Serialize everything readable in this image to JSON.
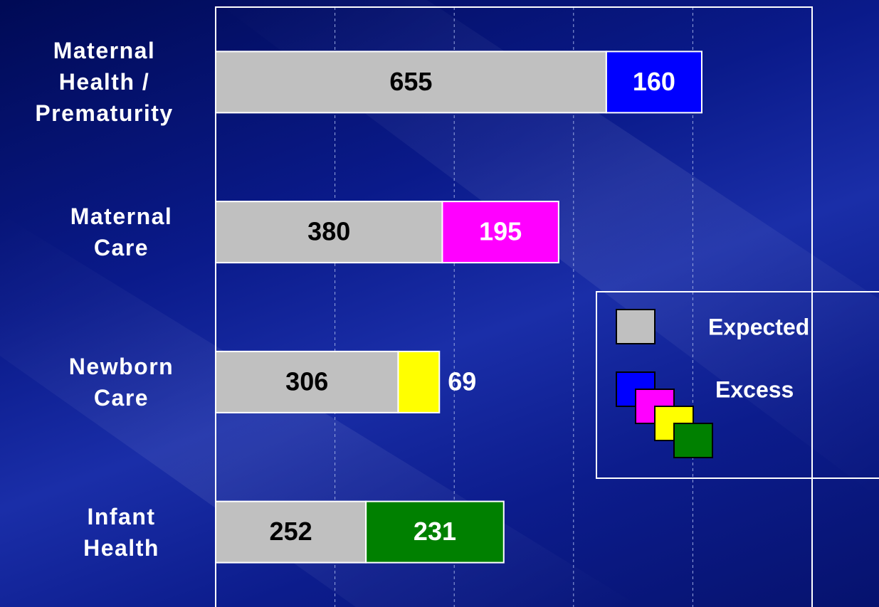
{
  "chart_data": {
    "type": "stacked_barh",
    "categories": [
      "Maternal Health / Prematurity",
      "Maternal Care",
      "Newborn Care",
      "Infant Health"
    ],
    "series": [
      {
        "name": "Expected",
        "color": "#c0c0c0",
        "values": [
          655,
          380,
          306,
          252
        ]
      },
      {
        "name": "Excess",
        "colors": [
          "#0000ff",
          "#ff00ff",
          "#ffff00",
          "#008000"
        ],
        "values": [
          160,
          195,
          69,
          231
        ]
      }
    ],
    "xlim": [
      0,
      1000
    ],
    "xticks": [
      0,
      200,
      400,
      600,
      800,
      1000
    ],
    "grid": true
  }
}
